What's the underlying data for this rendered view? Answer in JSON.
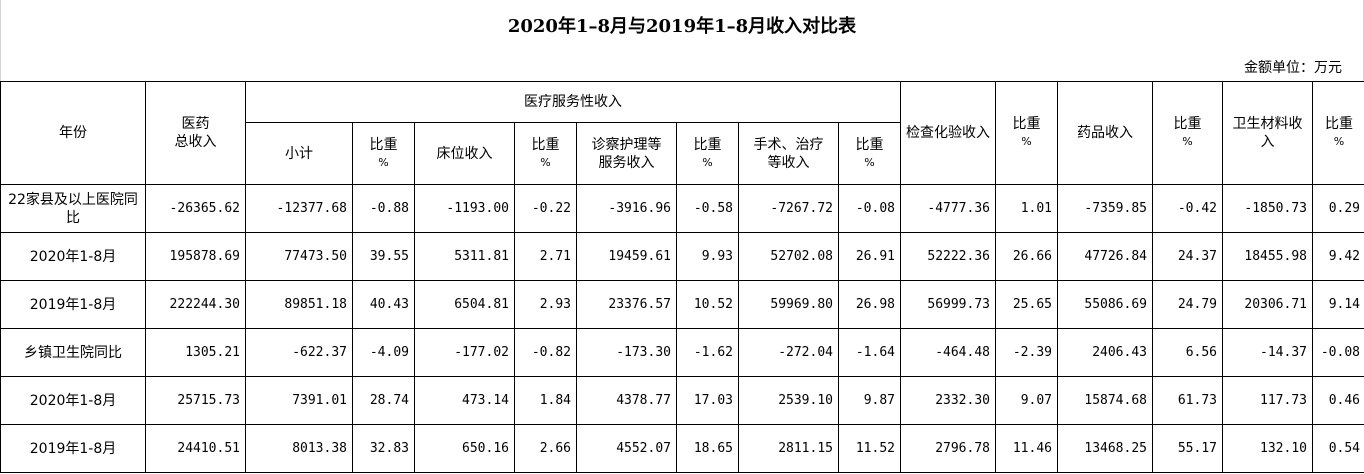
{
  "title": "2020年1–8月与2019年1–8月收入对比表",
  "unit_label": "金额单位：万元",
  "headers": {
    "year": "年份",
    "total_line1": "医药",
    "total_line2": "总收入",
    "medical_service": "医疗服务性收入",
    "subtotal": "小计",
    "ratio": "比重",
    "pct": "%",
    "bed": "床位收入",
    "diag_line1": "诊察护理等",
    "diag_line2": "服务收入",
    "surgery_line1": "手术、治疗",
    "surgery_line2": "等收入",
    "exam": "检查化验收入",
    "drug": "药品收入",
    "material": "卫生材料收入"
  },
  "rows": [
    {
      "label": "22家县及以上医院同比",
      "values": [
        "-26365.62",
        "-12377.68",
        "-0.88",
        "-1193.00",
        "-0.22",
        "-3916.96",
        "-0.58",
        "-7267.72",
        "-0.08",
        "-4777.36",
        "1.01",
        "-7359.85",
        "-0.42",
        "-1850.73",
        "0.29"
      ]
    },
    {
      "label": "2020年1-8月",
      "values": [
        "195878.69",
        "77473.50",
        "39.55",
        "5311.81",
        "2.71",
        "19459.61",
        "9.93",
        "52702.08",
        "26.91",
        "52222.36",
        "26.66",
        "47726.84",
        "24.37",
        "18455.98",
        "9.42"
      ]
    },
    {
      "label": "2019年1-8月",
      "values": [
        "222244.30",
        "89851.18",
        "40.43",
        "6504.81",
        "2.93",
        "23376.57",
        "10.52",
        "59969.80",
        "26.98",
        "56999.73",
        "25.65",
        "55086.69",
        "24.79",
        "20306.71",
        "9.14"
      ]
    },
    {
      "label": "乡镇卫生院同比",
      "values": [
        "1305.21",
        "-622.37",
        "-4.09",
        "-177.02",
        "-0.82",
        "-173.30",
        "-1.62",
        "-272.04",
        "-1.64",
        "-464.48",
        "-2.39",
        "2406.43",
        "6.56",
        "-14.37",
        "-0.08"
      ]
    },
    {
      "label": "2020年1-8月",
      "values": [
        "25715.73",
        "7391.01",
        "28.74",
        "473.14",
        "1.84",
        "4378.77",
        "17.03",
        "2539.10",
        "9.87",
        "2332.30",
        "9.07",
        "15874.68",
        "61.73",
        "117.73",
        "0.46"
      ]
    },
    {
      "label": "2019年1-8月",
      "values": [
        "24410.51",
        "8013.38",
        "32.83",
        "650.16",
        "2.66",
        "4552.07",
        "18.65",
        "2811.15",
        "11.52",
        "2796.78",
        "11.46",
        "13468.25",
        "55.17",
        "132.10",
        "0.54"
      ]
    }
  ]
}
